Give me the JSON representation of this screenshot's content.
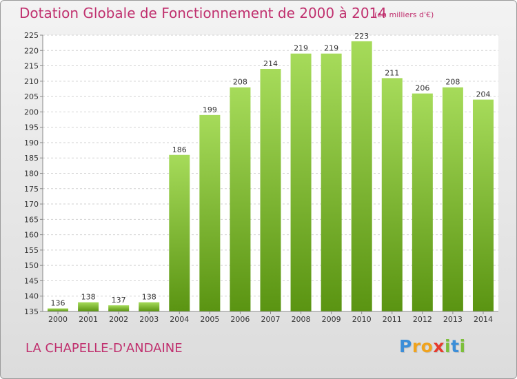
{
  "title": "Dotation Globale de Fonctionnement de 2000 à 2014",
  "unit_note": "(en milliers d'€)",
  "commune": "LA CHAPELLE-D'ANDAINE",
  "logo": {
    "letters": [
      "P",
      "r",
      "o",
      "x",
      "i",
      "t",
      "i"
    ],
    "colors": [
      "#3c8ed8",
      "#f0a31e",
      "#f0a31e",
      "#e63b2e",
      "#7cbf3a",
      "#3c8ed8",
      "#7cbf3a"
    ]
  },
  "colors": {
    "bar_top": "#a6db5a",
    "bar_bottom": "#5a9412",
    "title": "#c0306e"
  },
  "chart_data": {
    "type": "bar",
    "title": "Dotation Globale de Fonctionnement de 2000 à 2014",
    "subtitle": "(en milliers d'€)",
    "xlabel": "",
    "ylabel": "",
    "categories": [
      "2000",
      "2001",
      "2002",
      "2003",
      "2004",
      "2005",
      "2006",
      "2007",
      "2008",
      "2009",
      "2010",
      "2011",
      "2012",
      "2013",
      "2014"
    ],
    "values": [
      136,
      138,
      137,
      138,
      186,
      199,
      208,
      214,
      219,
      219,
      223,
      211,
      206,
      208,
      204
    ],
    "data_labels": [
      "136",
      "138",
      "137",
      "138",
      "186",
      "199",
      "208",
      "214",
      "219",
      "219",
      "223",
      "211",
      "206",
      "208",
      "204"
    ],
    "ylim": [
      135,
      225
    ],
    "yticks": [
      "135",
      "140",
      "145",
      "150",
      "155",
      "160",
      "165",
      "170",
      "175",
      "180",
      "185",
      "190",
      "195",
      "200",
      "205",
      "210",
      "215",
      "220",
      "225"
    ],
    "grid": "horizontal dashed"
  }
}
